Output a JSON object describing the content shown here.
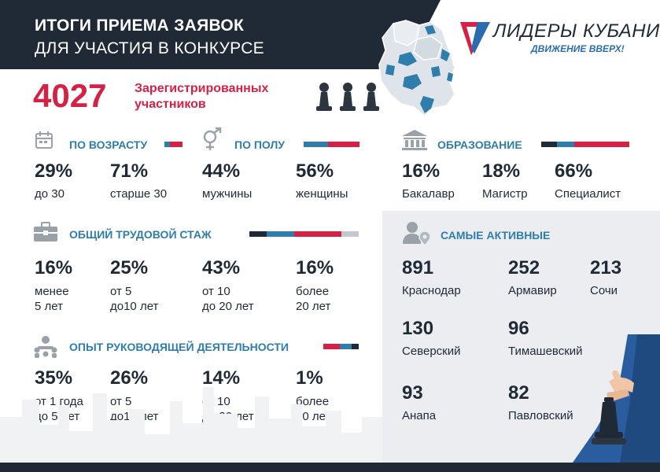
{
  "header": {
    "title_line1": "ИТОГИ ПРИЕМА ЗАЯВОК",
    "title_line2": "ДЛЯ УЧАСТИЯ В КОНКУРСЕ"
  },
  "logo": {
    "name": "ЛИДЕРЫ КУБАНИ",
    "tagline": "ДВИЖЕНИЕ ВВЕРХ!"
  },
  "total": {
    "number": "4027",
    "label": "Зарегистрированных участников"
  },
  "colors": {
    "dark": "#1f2a36",
    "blue": "#2f7dab",
    "red": "#d62147",
    "gray": "#c4c8ce"
  },
  "age": {
    "title": "ПО ВОЗРАСТУ",
    "icon": "calendar-icon",
    "items": [
      {
        "value": "29%",
        "label": "до 30"
      },
      {
        "value": "71%",
        "label": "старше 30"
      }
    ]
  },
  "gender": {
    "title": "ПО ПОЛУ",
    "icon": "gender-icon",
    "items": [
      {
        "value": "44%",
        "label": "мужчины"
      },
      {
        "value": "56%",
        "label": "женщины"
      }
    ]
  },
  "education": {
    "title": "ОБРАЗОВАНИЕ",
    "icon": "building-icon",
    "items": [
      {
        "value": "16%",
        "label": "Бакалавр"
      },
      {
        "value": "18%",
        "label": "Магистр"
      },
      {
        "value": "66%",
        "label": "Специалист"
      }
    ]
  },
  "experience": {
    "title": "ОБЩИЙ ТРУДОВОЙ СТАЖ",
    "icon": "briefcase-icon",
    "items": [
      {
        "value": "16%",
        "line1": "менее",
        "line2": "5 лет"
      },
      {
        "value": "25%",
        "line1": "от 5",
        "line2": "до10 лет"
      },
      {
        "value": "43%",
        "line1": "от 10",
        "line2": "до 20 лет"
      },
      {
        "value": "16%",
        "line1": "более",
        "line2": "20 лет"
      }
    ]
  },
  "leadership": {
    "title": "ОПЫТ РУКОВОДЯЩЕЙ ДЕЯТЕЛЬНОСТИ",
    "icon": "team-icon",
    "items": [
      {
        "value": "35%",
        "line1": "от 1 года",
        "line2": "до 5 лет"
      },
      {
        "value": "26%",
        "line1": "от 5",
        "line2": "до10 лет"
      },
      {
        "value": "14%",
        "line1": "от 10",
        "line2": "до 20 лет"
      },
      {
        "value": "1%",
        "line1": "более",
        "line2": "20 лет"
      }
    ]
  },
  "active": {
    "title": "САМЫЕ АКТИВНЫЕ",
    "icon": "user-location-icon",
    "items": [
      {
        "value": "891",
        "label": "Краснодар"
      },
      {
        "value": "252",
        "label": "Армавир"
      },
      {
        "value": "213",
        "label": "Сочи"
      },
      {
        "value": "130",
        "label": "Северский"
      },
      {
        "value": "96",
        "label": "Тимашевский"
      },
      {
        "value": "93",
        "label": "Анапа"
      },
      {
        "value": "82",
        "label": "Павловский"
      }
    ]
  }
}
